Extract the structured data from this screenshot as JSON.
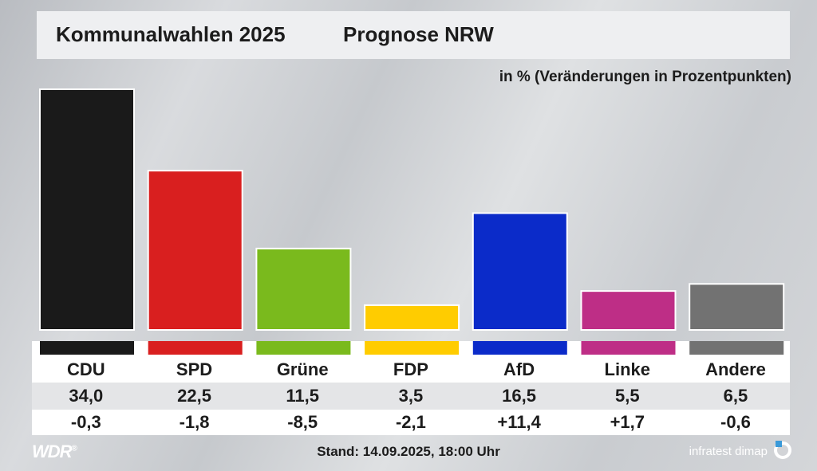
{
  "header": {
    "title": "Kommunalwahlen 2025",
    "subtitle": "Prognose NRW",
    "unit_note": "in % (Veränderungen in Prozentpunkten)"
  },
  "chart_data": {
    "type": "bar",
    "title": "Kommunalwahlen 2025",
    "subtitle": "Prognose NRW",
    "ylabel": "in % (Veränderungen in Prozentpunkten)",
    "categories": [
      "CDU",
      "SPD",
      "Grüne",
      "FDP",
      "AfD",
      "Linke",
      "Andere"
    ],
    "values": [
      34.0,
      22.5,
      11.5,
      3.5,
      16.5,
      5.5,
      6.5
    ],
    "value_labels": [
      "34,0",
      "22,5",
      "11,5",
      "3,5",
      "16,5",
      "5,5",
      "6,5"
    ],
    "changes": [
      -0.3,
      -1.8,
      -8.5,
      -2.1,
      11.4,
      1.7,
      -0.6
    ],
    "change_labels": [
      "-0,3",
      "-1,8",
      "-8,5",
      "-2,1",
      "+11,4",
      "+1,7",
      "-0,6"
    ],
    "colors": [
      "#1a1a1a",
      "#d91f1f",
      "#7aba1d",
      "#ffcc00",
      "#0b2bc9",
      "#be2e86",
      "#727272"
    ],
    "ylim": [
      0,
      34.0
    ],
    "grid": false,
    "legend": "none"
  },
  "footer": {
    "logo": "WDR",
    "logo_mark": "®",
    "stand": "Stand: 14.09.2025, 18:00 Uhr",
    "source": "infratest dimap"
  }
}
